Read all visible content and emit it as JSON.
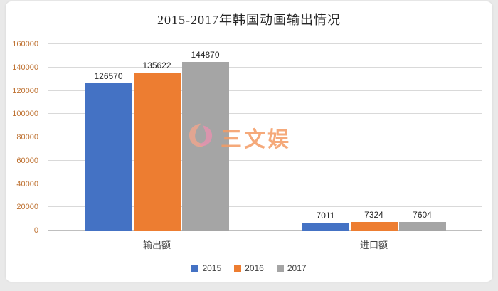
{
  "title": "2015-2017年韩国动画输出情况",
  "watermark": {
    "text": "三文娱"
  },
  "colors": {
    "y_tick": "#bf7232",
    "gridline": "#d9d9d9",
    "axis": "#bfbfbf"
  },
  "chart_data": {
    "type": "bar",
    "title": "2015-2017年韩国动画输出情况",
    "categories": [
      "输出额",
      "进口额"
    ],
    "series": [
      {
        "name": "2015",
        "color": "#4472C4",
        "values": [
          126570,
          7011
        ]
      },
      {
        "name": "2016",
        "color": "#ED7D31",
        "values": [
          135622,
          7324
        ]
      },
      {
        "name": "2017",
        "color": "#A5A5A5",
        "values": [
          144870,
          7604
        ]
      }
    ],
    "xlabel": "",
    "ylabel": "",
    "ylim": [
      0,
      160000
    ],
    "ytick_step": 20000,
    "grid": true,
    "legend_position": "bottom"
  }
}
